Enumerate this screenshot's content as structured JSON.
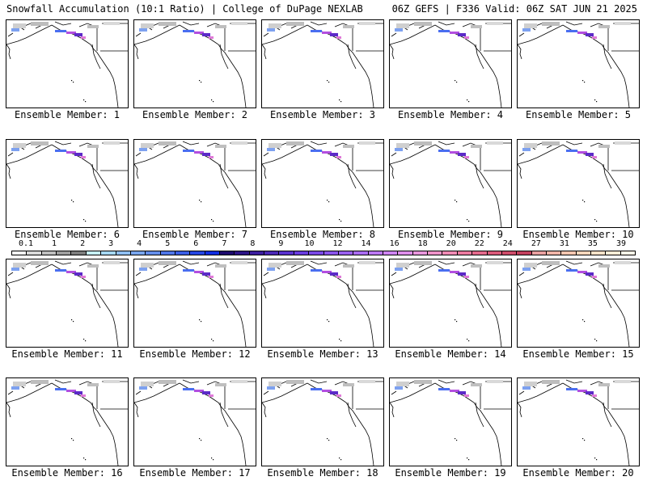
{
  "header": {
    "left_title": "Snowfall Accumulation (10:1 Ratio) | College of DuPage NEXLAB",
    "right_title": "06Z GEFS | F336 Valid: 06Z SAT JUN 21 2025"
  },
  "members": [
    {
      "label": "Ensemble Member: 1"
    },
    {
      "label": "Ensemble Member: 2"
    },
    {
      "label": "Ensemble Member: 3"
    },
    {
      "label": "Ensemble Member: 4"
    },
    {
      "label": "Ensemble Member: 5"
    },
    {
      "label": "Ensemble Member: 6"
    },
    {
      "label": "Ensemble Member: 7"
    },
    {
      "label": "Ensemble Member: 8"
    },
    {
      "label": "Ensemble Member: 9"
    },
    {
      "label": "Ensemble Member: 10"
    },
    {
      "label": "Ensemble Member: 11"
    },
    {
      "label": "Ensemble Member: 12"
    },
    {
      "label": "Ensemble Member: 13"
    },
    {
      "label": "Ensemble Member: 14"
    },
    {
      "label": "Ensemble Member: 15"
    },
    {
      "label": "Ensemble Member: 16"
    },
    {
      "label": "Ensemble Member: 17"
    },
    {
      "label": "Ensemble Member: 18"
    },
    {
      "label": "Ensemble Member: 19"
    },
    {
      "label": "Ensemble Member: 20"
    }
  ],
  "colorbar": {
    "labels": [
      "0.1",
      "1",
      "2",
      "3",
      "4",
      "5",
      "6",
      "7",
      "8",
      "9",
      "10",
      "12",
      "14",
      "16",
      "18",
      "20",
      "22",
      "24",
      "27",
      "31",
      "35",
      "39"
    ],
    "colors": [
      "#f2f2f2",
      "#d9d9d9",
      "#bfbfbf",
      "#9e9e9e",
      "#7d7d7d",
      "#c6f0f7",
      "#a6d8f5",
      "#8fbff2",
      "#79a6ee",
      "#648eeb",
      "#4f76e8",
      "#3a5ee5",
      "#2546e2",
      "#102ee0",
      "#1e0a6e",
      "#2d1486",
      "#3c1e9e",
      "#4b28b6",
      "#5a32ce",
      "#6a3ce0",
      "#7a48e6",
      "#8a54ec",
      "#9a60f0",
      "#aa6cf2",
      "#bc78f4",
      "#ce84f2",
      "#de8eea",
      "#e896dc",
      "#ee92c8",
      "#f08ab4",
      "#ec7aa0",
      "#e46a8c",
      "#da5a7a",
      "#ce4c6a",
      "#c2405e",
      "#e8a0a0",
      "#f0b4a8",
      "#f6c6b0",
      "#fad6bc",
      "#fce2c8",
      "#fdecd6",
      "#fff6e8"
    ]
  }
}
